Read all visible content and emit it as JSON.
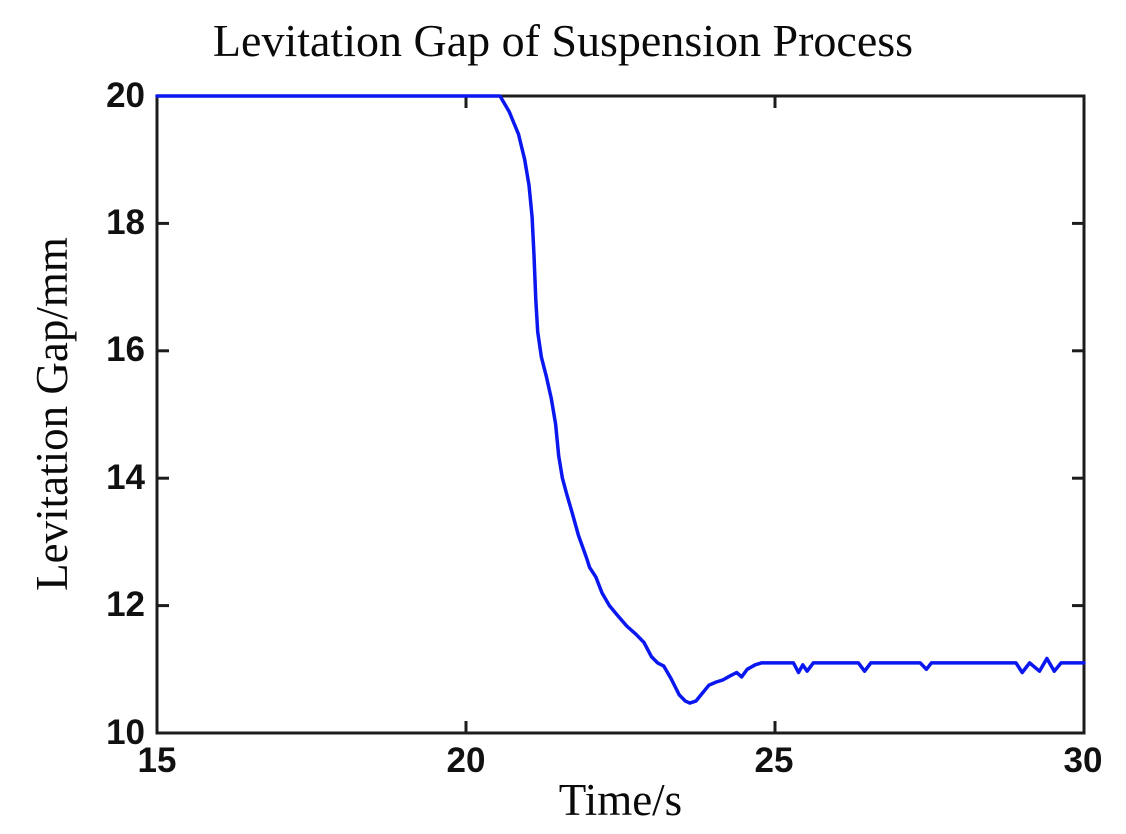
{
  "chart_data": {
    "type": "line",
    "title": "Levitation Gap of Suspension Process",
    "xlabel": "Time/s",
    "ylabel": "Levitation Gap/mm",
    "xlim": [
      15,
      30
    ],
    "ylim": [
      10,
      20
    ],
    "xticks": [
      15,
      20,
      25,
      30
    ],
    "yticks": [
      10,
      12,
      14,
      16,
      18,
      20
    ],
    "grid": false,
    "legend": "none",
    "line_color": "#0a17ef",
    "axis_color": "#1c1c1c",
    "series": [
      {
        "name": "levitation-gap",
        "points": [
          [
            15.0,
            20.0
          ],
          [
            20.55,
            20.0
          ],
          [
            20.7,
            19.75
          ],
          [
            20.85,
            19.4
          ],
          [
            20.95,
            19.0
          ],
          [
            21.02,
            18.6
          ],
          [
            21.07,
            18.1
          ],
          [
            21.1,
            17.5
          ],
          [
            21.13,
            16.8
          ],
          [
            21.16,
            16.3
          ],
          [
            21.22,
            15.9
          ],
          [
            21.3,
            15.6
          ],
          [
            21.38,
            15.25
          ],
          [
            21.45,
            14.85
          ],
          [
            21.5,
            14.35
          ],
          [
            21.56,
            14.0
          ],
          [
            21.63,
            13.75
          ],
          [
            21.72,
            13.45
          ],
          [
            21.82,
            13.1
          ],
          [
            21.95,
            12.75
          ],
          [
            22.0,
            12.6
          ],
          [
            22.1,
            12.45
          ],
          [
            22.2,
            12.2
          ],
          [
            22.32,
            12.0
          ],
          [
            22.45,
            11.85
          ],
          [
            22.6,
            11.68
          ],
          [
            22.75,
            11.55
          ],
          [
            22.88,
            11.42
          ],
          [
            23.0,
            11.2
          ],
          [
            23.1,
            11.1
          ],
          [
            23.2,
            11.05
          ],
          [
            23.32,
            10.85
          ],
          [
            23.45,
            10.6
          ],
          [
            23.55,
            10.5
          ],
          [
            23.62,
            10.47
          ],
          [
            23.72,
            10.5
          ],
          [
            23.82,
            10.62
          ],
          [
            23.93,
            10.75
          ],
          [
            24.05,
            10.8
          ],
          [
            24.15,
            10.83
          ],
          [
            24.28,
            10.9
          ],
          [
            24.38,
            10.95
          ],
          [
            24.46,
            10.88
          ],
          [
            24.55,
            11.0
          ],
          [
            24.68,
            11.07
          ],
          [
            24.78,
            11.1
          ],
          [
            25.3,
            11.1
          ],
          [
            25.38,
            10.95
          ],
          [
            25.45,
            11.07
          ],
          [
            25.52,
            10.97
          ],
          [
            25.62,
            11.1
          ],
          [
            26.35,
            11.1
          ],
          [
            26.45,
            10.97
          ],
          [
            26.55,
            11.1
          ],
          [
            27.35,
            11.1
          ],
          [
            27.45,
            11.0
          ],
          [
            27.53,
            11.1
          ],
          [
            28.9,
            11.1
          ],
          [
            29.0,
            10.95
          ],
          [
            29.12,
            11.1
          ],
          [
            29.28,
            10.97
          ],
          [
            29.4,
            11.17
          ],
          [
            29.52,
            10.97
          ],
          [
            29.63,
            11.1
          ],
          [
            30.0,
            11.1
          ]
        ]
      }
    ]
  }
}
